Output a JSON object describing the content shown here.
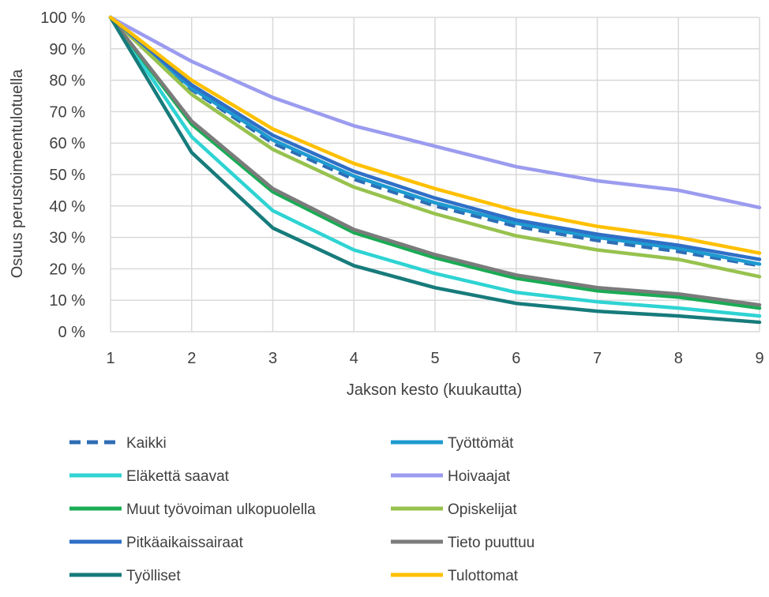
{
  "chart_data": {
    "type": "line",
    "title": "",
    "xlabel": "Jakson kesto (kuukautta)",
    "ylabel": "Osuus perustoimeentulotuella",
    "x": [
      1,
      2,
      3,
      4,
      5,
      6,
      7,
      8,
      9
    ],
    "xlim": [
      1,
      9
    ],
    "ylim": [
      0,
      100
    ],
    "y_ticks": [
      "0 %",
      "10 %",
      "20 %",
      "30 %",
      "40 %",
      "50 %",
      "60 %",
      "70 %",
      "80 %",
      "90 %",
      "100 %"
    ],
    "grid": "vertical and horizontal",
    "legend_position": "bottom",
    "series": [
      {
        "name": "Kaikki",
        "color": "#2f6db5",
        "dashed": true,
        "values": [
          100,
          77,
          60,
          48.5,
          40,
          33.5,
          29,
          25.5,
          21
        ]
      },
      {
        "name": "Työttömät",
        "color": "#1e9ad0",
        "dashed": false,
        "values": [
          100,
          77.5,
          61,
          49.5,
          41,
          34.5,
          30,
          26.5,
          21.5
        ]
      },
      {
        "name": "Eläkettä saavat",
        "color": "#2fd3d3",
        "dashed": false,
        "values": [
          100,
          62,
          38.5,
          26,
          18.5,
          12.5,
          9.5,
          7.5,
          5
        ]
      },
      {
        "name": "Hoivaajat",
        "color": "#9b9bef",
        "dashed": false,
        "values": [
          100,
          86,
          74.5,
          65.5,
          59,
          52.5,
          48,
          45,
          39.5
        ]
      },
      {
        "name": "Muut työvoiman ulkopuolella",
        "color": "#1aab55",
        "dashed": false,
        "values": [
          100,
          66,
          44.5,
          31.5,
          23.5,
          17,
          13,
          11,
          7.5
        ]
      },
      {
        "name": "Opiskelijat",
        "color": "#97c24e",
        "dashed": false,
        "values": [
          100,
          75.5,
          58,
          46,
          37.5,
          30.5,
          26,
          23,
          17.5
        ]
      },
      {
        "name": "Pitkäaikaissairaat",
        "color": "#2f6fc6",
        "dashed": false,
        "values": [
          100,
          78.5,
          62.5,
          51,
          42.5,
          35.5,
          31,
          27.5,
          23
        ]
      },
      {
        "name": "Tieto puuttuu",
        "color": "#7b7b7b",
        "dashed": false,
        "values": [
          100,
          67,
          45.5,
          32.5,
          24.5,
          18,
          14,
          12,
          8.5
        ]
      },
      {
        "name": "Työlliset",
        "color": "#177b7b",
        "dashed": false,
        "values": [
          100,
          57,
          33,
          21,
          14,
          9,
          6.5,
          5,
          3
        ]
      },
      {
        "name": "Tulottomat",
        "color": "#ffc000",
        "dashed": false,
        "values": [
          100,
          80,
          64.5,
          53.5,
          45.5,
          38.5,
          33.5,
          30,
          25
        ]
      }
    ]
  }
}
